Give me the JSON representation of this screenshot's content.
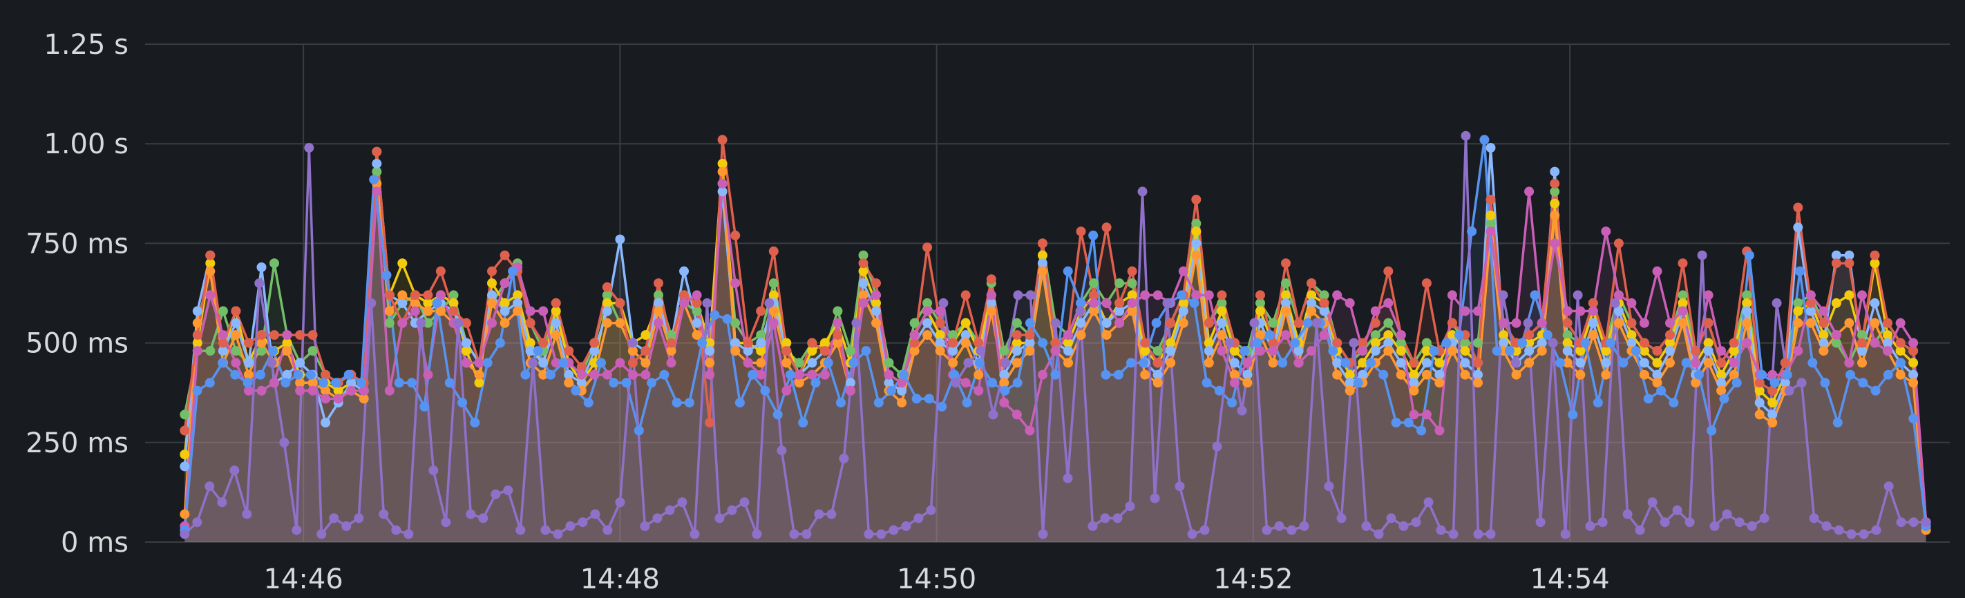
{
  "chart_data": {
    "type": "line",
    "title": "",
    "xlabel": "",
    "ylabel": "",
    "x_unit": "minutes",
    "xlim": [
      "14:45.00",
      "14:56.40"
    ],
    "ylim": [
      0,
      1.25
    ],
    "grid": true,
    "legend": "none",
    "x_ticks": [
      {
        "label": "14:46",
        "value": 46
      },
      {
        "label": "14:48",
        "value": 48
      },
      {
        "label": "14:50",
        "value": 50
      },
      {
        "label": "14:52",
        "value": 52
      },
      {
        "label": "14:54",
        "value": 54
      }
    ],
    "y_ticks": [
      {
        "label": "0 ms",
        "value": 0
      },
      {
        "label": "250 ms",
        "value": 0.25
      },
      {
        "label": "500 ms",
        "value": 0.5
      },
      {
        "label": "750 ms",
        "value": 0.75
      },
      {
        "label": "1.00 s",
        "value": 1.0
      },
      {
        "label": "1.25 s",
        "value": 1.25
      }
    ],
    "x_start": "14:45.25",
    "x_end": "14:56.25",
    "series": [
      {
        "color": "#73bf69",
        "values": [
          0.32,
          0.48,
          0.48,
          0.58,
          0.48,
          0.45,
          0.48,
          0.7,
          0.52,
          0.45,
          0.48,
          0.42,
          0.4,
          0.42,
          0.4,
          0.93,
          0.55,
          0.6,
          0.62,
          0.55,
          0.58,
          0.62,
          0.5,
          0.45,
          0.6,
          0.65,
          0.7,
          0.55,
          0.48,
          0.6,
          0.45,
          0.42,
          0.5,
          0.62,
          0.55,
          0.48,
          0.45,
          0.62,
          0.52,
          0.6,
          0.58,
          0.48,
          0.9,
          0.55,
          0.5,
          0.52,
          0.65,
          0.48,
          0.45,
          0.5,
          0.48,
          0.58,
          0.48,
          0.72,
          0.62,
          0.45,
          0.42,
          0.55,
          0.6,
          0.55,
          0.52,
          0.55,
          0.5,
          0.65,
          0.48,
          0.55,
          0.52,
          0.75,
          0.55,
          0.52,
          0.6,
          0.65,
          0.6,
          0.65,
          0.65,
          0.5,
          0.48,
          0.55,
          0.62,
          0.8,
          0.55,
          0.6,
          0.5,
          0.48,
          0.6,
          0.55,
          0.65,
          0.55,
          0.65,
          0.62,
          0.5,
          0.45,
          0.48,
          0.52,
          0.55,
          0.5,
          0.45,
          0.5,
          0.48,
          0.55,
          0.5,
          0.5,
          0.8,
          0.55,
          0.5,
          0.52,
          0.55,
          0.88,
          0.52,
          0.5,
          0.6,
          0.5,
          0.62,
          0.55,
          0.5,
          0.48,
          0.52,
          0.62,
          0.48,
          0.55,
          0.45,
          0.5,
          0.62,
          0.4,
          0.38,
          0.45,
          0.6,
          0.62,
          0.55,
          0.5,
          0.45,
          0.52,
          0.5,
          0.55,
          0.5,
          0.48,
          0.05
        ]
      },
      {
        "color": "#f2cc0c",
        "values": [
          0.22,
          0.5,
          0.7,
          0.48,
          0.58,
          0.45,
          0.52,
          0.48,
          0.5,
          0.42,
          0.42,
          0.4,
          0.38,
          0.4,
          0.38,
          0.98,
          0.62,
          0.7,
          0.62,
          0.6,
          0.62,
          0.6,
          0.48,
          0.4,
          0.65,
          0.6,
          0.62,
          0.5,
          0.45,
          0.58,
          0.45,
          0.4,
          0.45,
          0.6,
          0.6,
          0.5,
          0.52,
          0.6,
          0.5,
          0.62,
          0.6,
          0.5,
          0.95,
          0.5,
          0.5,
          0.48,
          0.62,
          0.5,
          0.42,
          0.48,
          0.5,
          0.55,
          0.45,
          0.68,
          0.6,
          0.42,
          0.4,
          0.52,
          0.58,
          0.52,
          0.5,
          0.55,
          0.48,
          0.62,
          0.45,
          0.5,
          0.5,
          0.72,
          0.5,
          0.5,
          0.58,
          0.62,
          0.55,
          0.6,
          0.62,
          0.48,
          0.45,
          0.5,
          0.6,
          0.78,
          0.5,
          0.58,
          0.48,
          0.45,
          0.58,
          0.5,
          0.62,
          0.5,
          0.62,
          0.6,
          0.48,
          0.42,
          0.45,
          0.5,
          0.52,
          0.48,
          0.42,
          0.48,
          0.45,
          0.52,
          0.48,
          0.45,
          0.82,
          0.52,
          0.48,
          0.5,
          0.52,
          0.85,
          0.5,
          0.48,
          0.58,
          0.48,
          0.6,
          0.52,
          0.48,
          0.45,
          0.5,
          0.6,
          0.45,
          0.5,
          0.42,
          0.48,
          0.6,
          0.38,
          0.35,
          0.42,
          0.58,
          0.6,
          0.52,
          0.6,
          0.62,
          0.5,
          0.7,
          0.52,
          0.48,
          0.45,
          0.05
        ]
      },
      {
        "color": "#8ab8ff",
        "values": [
          0.19,
          0.58,
          0.72,
          0.48,
          0.55,
          0.45,
          0.69,
          0.4,
          0.42,
          0.45,
          0.42,
          0.3,
          0.35,
          0.4,
          0.38,
          0.95,
          0.62,
          0.6,
          0.55,
          0.58,
          0.6,
          0.58,
          0.5,
          0.45,
          0.62,
          0.58,
          0.6,
          0.48,
          0.45,
          0.55,
          0.42,
          0.4,
          0.48,
          0.58,
          0.76,
          0.5,
          0.48,
          0.6,
          0.5,
          0.68,
          0.55,
          0.48,
          0.88,
          0.5,
          0.48,
          0.5,
          0.6,
          0.48,
          0.42,
          0.45,
          0.48,
          0.52,
          0.4,
          0.65,
          0.58,
          0.4,
          0.38,
          0.5,
          0.55,
          0.5,
          0.48,
          0.52,
          0.45,
          0.6,
          0.42,
          0.48,
          0.5,
          0.7,
          0.5,
          0.48,
          0.55,
          0.6,
          0.55,
          0.58,
          0.6,
          0.45,
          0.42,
          0.48,
          0.58,
          0.75,
          0.48,
          0.55,
          0.45,
          0.42,
          0.55,
          0.48,
          0.6,
          0.48,
          0.6,
          0.58,
          0.45,
          0.4,
          0.42,
          0.48,
          0.5,
          0.45,
          0.4,
          0.45,
          0.42,
          0.5,
          0.45,
          0.42,
          0.99,
          0.5,
          0.45,
          0.48,
          0.5,
          0.93,
          0.48,
          0.45,
          0.55,
          0.45,
          0.58,
          0.5,
          0.45,
          0.42,
          0.48,
          0.58,
          0.42,
          0.48,
          0.4,
          0.45,
          0.58,
          0.35,
          0.32,
          0.4,
          0.79,
          0.58,
          0.5,
          0.72,
          0.72,
          0.48,
          0.6,
          0.5,
          0.45,
          0.42,
          0.05
        ]
      },
      {
        "color": "#ff9830",
        "values": [
          0.07,
          0.55,
          0.68,
          0.45,
          0.52,
          0.42,
          0.5,
          0.45,
          0.48,
          0.4,
          0.4,
          0.38,
          0.36,
          0.38,
          0.36,
          0.9,
          0.58,
          0.62,
          0.6,
          0.58,
          0.58,
          0.55,
          0.45,
          0.42,
          0.6,
          0.55,
          0.58,
          0.45,
          0.42,
          0.52,
          0.4,
          0.38,
          0.42,
          0.55,
          0.55,
          0.48,
          0.45,
          0.58,
          0.48,
          0.6,
          0.52,
          0.45,
          0.93,
          0.48,
          0.45,
          0.45,
          0.58,
          0.45,
          0.4,
          0.42,
          0.45,
          0.5,
          0.38,
          0.62,
          0.55,
          0.38,
          0.35,
          0.48,
          0.52,
          0.48,
          0.45,
          0.5,
          0.42,
          0.58,
          0.4,
          0.45,
          0.48,
          0.68,
          0.48,
          0.45,
          0.52,
          0.58,
          0.52,
          0.55,
          0.58,
          0.42,
          0.4,
          0.45,
          0.55,
          0.72,
          0.45,
          0.52,
          0.42,
          0.4,
          0.52,
          0.45,
          0.58,
          0.45,
          0.58,
          0.55,
          0.42,
          0.38,
          0.4,
          0.45,
          0.48,
          0.42,
          0.38,
          0.42,
          0.4,
          0.48,
          0.42,
          0.4,
          0.78,
          0.48,
          0.42,
          0.45,
          0.48,
          0.82,
          0.45,
          0.42,
          0.52,
          0.42,
          0.55,
          0.48,
          0.42,
          0.4,
          0.45,
          0.55,
          0.4,
          0.45,
          0.38,
          0.42,
          0.55,
          0.32,
          0.3,
          0.38,
          0.55,
          0.55,
          0.48,
          0.52,
          0.55,
          0.45,
          0.55,
          0.48,
          0.42,
          0.4,
          0.03
        ]
      },
      {
        "color": "#e0604e",
        "values": [
          0.28,
          0.52,
          0.72,
          0.5,
          0.58,
          0.5,
          0.52,
          0.52,
          0.52,
          0.52,
          0.52,
          0.42,
          0.4,
          0.42,
          0.4,
          0.98,
          0.62,
          0.55,
          0.62,
          0.62,
          0.68,
          0.58,
          0.55,
          0.45,
          0.68,
          0.72,
          0.68,
          0.55,
          0.5,
          0.6,
          0.48,
          0.44,
          0.5,
          0.64,
          0.6,
          0.45,
          0.48,
          0.65,
          0.5,
          0.62,
          0.6,
          0.3,
          1.01,
          0.77,
          0.5,
          0.58,
          0.73,
          0.48,
          0.42,
          0.5,
          0.48,
          0.52,
          0.38,
          0.7,
          0.65,
          0.42,
          0.4,
          0.5,
          0.74,
          0.55,
          0.5,
          0.62,
          0.5,
          0.66,
          0.45,
          0.52,
          0.52,
          0.75,
          0.5,
          0.52,
          0.78,
          0.62,
          0.79,
          0.6,
          0.68,
          0.5,
          0.45,
          0.55,
          0.62,
          0.86,
          0.55,
          0.62,
          0.5,
          0.45,
          0.62,
          0.5,
          0.7,
          0.55,
          0.65,
          0.6,
          0.5,
          0.45,
          0.5,
          0.55,
          0.68,
          0.52,
          0.45,
          0.65,
          0.48,
          0.55,
          0.52,
          0.45,
          0.86,
          0.55,
          0.5,
          0.52,
          0.55,
          0.9,
          0.55,
          0.5,
          0.6,
          0.5,
          0.75,
          0.55,
          0.5,
          0.48,
          0.52,
          0.7,
          0.48,
          0.55,
          0.45,
          0.5,
          0.73,
          0.4,
          0.38,
          0.45,
          0.84,
          0.6,
          0.55,
          0.7,
          0.7,
          0.5,
          0.72,
          0.55,
          0.5,
          0.48,
          0.04
        ]
      },
      {
        "color": "#ca5fb8",
        "values": [
          0.04,
          0.48,
          0.62,
          0.52,
          0.45,
          0.38,
          0.38,
          0.4,
          0.52,
          0.38,
          0.38,
          0.36,
          0.36,
          0.38,
          0.38,
          0.88,
          0.38,
          0.55,
          0.58,
          0.42,
          0.62,
          0.55,
          0.45,
          0.45,
          0.55,
          0.65,
          0.69,
          0.58,
          0.58,
          0.45,
          0.45,
          0.42,
          0.42,
          0.42,
          0.45,
          0.42,
          0.42,
          0.55,
          0.45,
          0.6,
          0.62,
          0.42,
          0.9,
          0.65,
          0.45,
          0.42,
          0.55,
          0.38,
          0.42,
          0.42,
          0.42,
          0.55,
          0.38,
          0.6,
          0.62,
          0.42,
          0.4,
          0.52,
          0.58,
          0.58,
          0.42,
          0.4,
          0.38,
          0.62,
          0.35,
          0.32,
          0.28,
          0.42,
          0.48,
          0.52,
          0.6,
          0.6,
          0.6,
          0.55,
          0.6,
          0.62,
          0.62,
          0.6,
          0.68,
          0.62,
          0.62,
          0.48,
          0.4,
          0.45,
          0.48,
          0.48,
          0.52,
          0.45,
          0.48,
          0.52,
          0.62,
          0.6,
          0.48,
          0.58,
          0.6,
          0.52,
          0.32,
          0.32,
          0.28,
          0.62,
          0.58,
          0.58,
          0.78,
          0.55,
          0.55,
          0.88,
          0.55,
          0.75,
          0.58,
          0.58,
          0.58,
          0.78,
          0.62,
          0.6,
          0.55,
          0.68,
          0.55,
          0.58,
          0.45,
          0.62,
          0.48,
          0.45,
          0.5,
          0.42,
          0.42,
          0.42,
          0.48,
          0.62,
          0.58,
          0.52,
          0.45,
          0.62,
          0.5,
          0.48,
          0.55,
          0.5,
          0.05
        ]
      },
      {
        "color": "#5794f2",
        "values": [
          0.03,
          0.38,
          0.4,
          0.45,
          0.42,
          0.4,
          0.42,
          0.48,
          0.4,
          0.42,
          0.42,
          0.4,
          0.4,
          0.42,
          0.4,
          0.91,
          0.67,
          0.4,
          0.4,
          0.34,
          0.6,
          0.4,
          0.35,
          0.3,
          0.45,
          0.5,
          0.68,
          0.42,
          0.48,
          0.42,
          0.45,
          0.38,
          0.35,
          0.45,
          0.4,
          0.4,
          0.28,
          0.4,
          0.42,
          0.35,
          0.35,
          0.5,
          0.57,
          0.56,
          0.35,
          0.42,
          0.38,
          0.32,
          0.42,
          0.3,
          0.4,
          0.45,
          0.35,
          0.45,
          0.48,
          0.35,
          0.38,
          0.42,
          0.36,
          0.36,
          0.34,
          0.42,
          0.35,
          0.45,
          0.4,
          0.38,
          0.4,
          0.55,
          0.5,
          0.42,
          0.68,
          0.6,
          0.77,
          0.42,
          0.42,
          0.45,
          0.45,
          0.55,
          0.6,
          0.62,
          0.6,
          0.4,
          0.38,
          0.35,
          0.48,
          0.5,
          0.52,
          0.45,
          0.5,
          0.55,
          0.55,
          0.48,
          0.45,
          0.4,
          0.45,
          0.42,
          0.3,
          0.3,
          0.28,
          0.48,
          0.5,
          0.52,
          0.78,
          1.01,
          0.48,
          0.48,
          0.5,
          0.62,
          0.52,
          0.45,
          0.32,
          0.5,
          0.35,
          0.5,
          0.45,
          0.48,
          0.36,
          0.38,
          0.35,
          0.45,
          0.42,
          0.28,
          0.36,
          0.4,
          0.72,
          0.42,
          0.4,
          0.42,
          0.68,
          0.45,
          0.4,
          0.3,
          0.42,
          0.4,
          0.38,
          0.42,
          0.45,
          0.31,
          0.04
        ]
      },
      {
        "color": "#8f71c9",
        "values": [
          0.02,
          0.05,
          0.14,
          0.1,
          0.18,
          0.07,
          0.65,
          0.45,
          0.25,
          0.03,
          0.99,
          0.02,
          0.06,
          0.04,
          0.06,
          0.6,
          0.07,
          0.03,
          0.02,
          0.55,
          0.18,
          0.05,
          0.55,
          0.07,
          0.06,
          0.12,
          0.13,
          0.03,
          0.45,
          0.03,
          0.02,
          0.04,
          0.05,
          0.07,
          0.03,
          0.1,
          0.5,
          0.04,
          0.06,
          0.08,
          0.1,
          0.02,
          0.6,
          0.06,
          0.08,
          0.1,
          0.02,
          0.6,
          0.23,
          0.02,
          0.02,
          0.07,
          0.07,
          0.21,
          0.55,
          0.02,
          0.02,
          0.03,
          0.04,
          0.06,
          0.08,
          0.6,
          0.4,
          0.45,
          0.48,
          0.32,
          0.45,
          0.62,
          0.62,
          0.02,
          0.55,
          0.16,
          0.58,
          0.04,
          0.06,
          0.06,
          0.09,
          0.88,
          0.11,
          0.6,
          0.14,
          0.02,
          0.03,
          0.24,
          0.5,
          0.33,
          0.55,
          0.03,
          0.04,
          0.03,
          0.04,
          0.55,
          0.14,
          0.06,
          0.5,
          0.04,
          0.02,
          0.06,
          0.04,
          0.05,
          0.1,
          0.03,
          0.02,
          1.02,
          0.02,
          0.02,
          0.62,
          0.45,
          0.55,
          0.05,
          0.5,
          0.02,
          0.62,
          0.04,
          0.05,
          0.6,
          0.07,
          0.03,
          0.1,
          0.05,
          0.08,
          0.05,
          0.72,
          0.04,
          0.07,
          0.05,
          0.04,
          0.06,
          0.6,
          0.38,
          0.4,
          0.06,
          0.04,
          0.03,
          0.02,
          0.02,
          0.03,
          0.14,
          0.05,
          0.05,
          0.05
        ]
      }
    ]
  }
}
